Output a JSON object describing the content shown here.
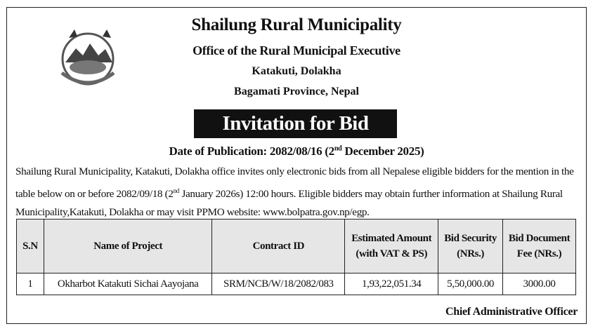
{
  "header": {
    "title": "Shailung Rural Municipality",
    "office": "Office of the Rural Municipal Executive",
    "address": "Katakuti, Dolakha",
    "province": "Bagamati  Province, Nepal",
    "banner": "Invitation for Bid",
    "date_prefix": "Date of Publication: 2082/08/16 (2",
    "date_sup": "nd",
    "date_suffix": " December 2025)"
  },
  "body": {
    "part1": "Shailung Rural Municipality, Katakuti, Dolakha office invites only electronic bids from all Nepalese eligible bidders for the mention in the table below on or before 2082/09/18 (2",
    "sup": "nd",
    "part2": " January 2026s) 12:00 hours. Eligible bidders may obtain further information at Shailung Rural Municipality,Katakuti, Dolakha or may visit PPMO website: www.bolpatra.gov.np/egp."
  },
  "table": {
    "headers": [
      "S.N",
      "Name of Project",
      "Contract ID",
      "Estimated Amount (with VAT & PS)",
      "Bid Security (NRs.)",
      "Bid Document Fee (NRs.)"
    ],
    "rows": [
      [
        "1",
        "Okharbot Katakuti Sichai Aayojana",
        "SRM/NCB/W/18/2082/083",
        "1,93,22,051.34",
        "5,50,000.00",
        "3000.00"
      ]
    ]
  },
  "signature": "Chief Administrative Officer",
  "logo": "nepal-government-emblem"
}
